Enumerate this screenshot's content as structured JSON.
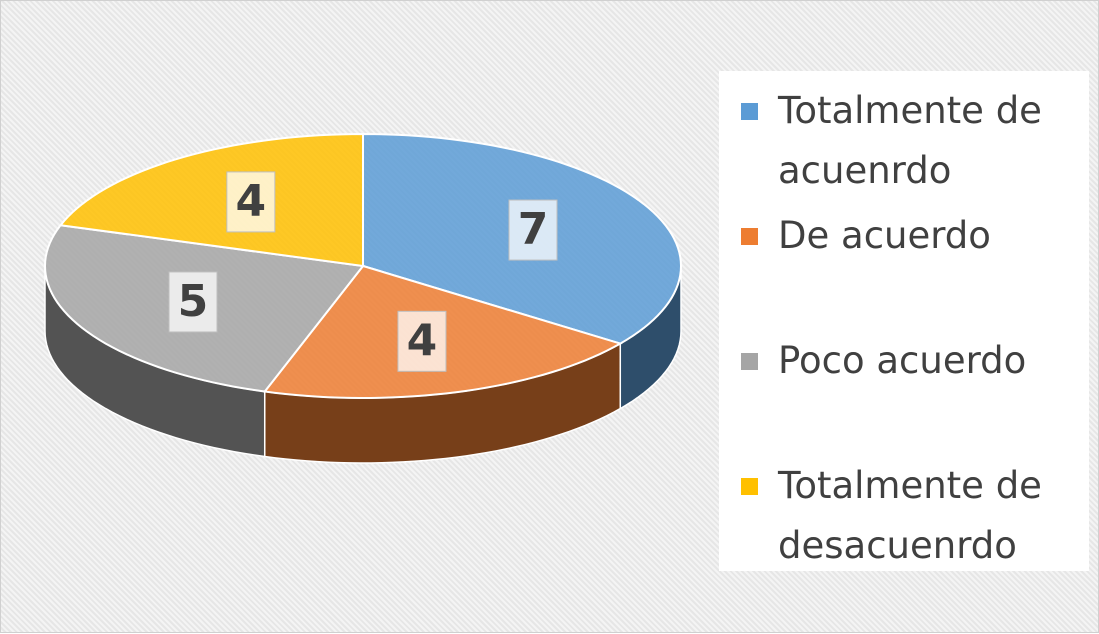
{
  "chart_data": {
    "type": "pie3d",
    "categories": [
      "Totalmente de acuenrdo",
      "De acuerdo",
      "Poco acuerdo",
      "Totalmente de desacuenrdo"
    ],
    "values": [
      7,
      4,
      5,
      4
    ],
    "colors": [
      "#5b9bd5",
      "#ed7d31",
      "#a5a5a5",
      "#ffc000"
    ],
    "legend": "right"
  }
}
